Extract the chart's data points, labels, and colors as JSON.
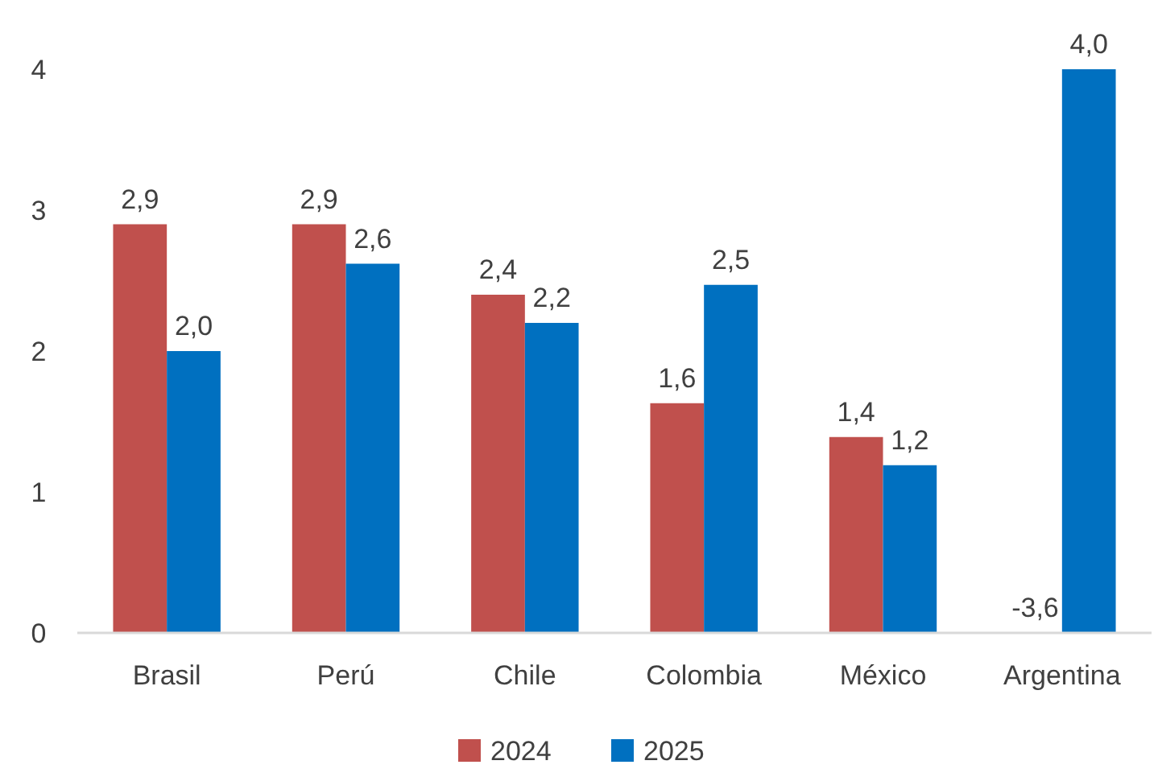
{
  "chart_data": {
    "type": "bar",
    "categories": [
      "Brasil",
      "Perú",
      "Chile",
      "Colombia",
      "México",
      "Argentina"
    ],
    "series": [
      {
        "name": "2024",
        "color": "#c0504d",
        "values": [
          2.9,
          2.9,
          2.4,
          1.63,
          1.39,
          null
        ],
        "value_labels": [
          "2,9",
          "2,9",
          "2,4",
          "1,6",
          "1,4",
          null
        ]
      },
      {
        "name": "2025",
        "color": "#0070c0",
        "values": [
          2.0,
          2.62,
          2.2,
          2.47,
          1.19,
          4.0
        ],
        "value_labels": [
          "2,0",
          "2,6",
          "2,2",
          "2,5",
          "1,2",
          "4,0"
        ]
      }
    ],
    "annotations": [
      {
        "text": "-3,6",
        "x": "Argentina",
        "y": 0
      }
    ],
    "ylim": [
      0,
      4
    ],
    "yticks": [
      0,
      1,
      2,
      3,
      4
    ],
    "grid": false,
    "legend": "bottom"
  }
}
